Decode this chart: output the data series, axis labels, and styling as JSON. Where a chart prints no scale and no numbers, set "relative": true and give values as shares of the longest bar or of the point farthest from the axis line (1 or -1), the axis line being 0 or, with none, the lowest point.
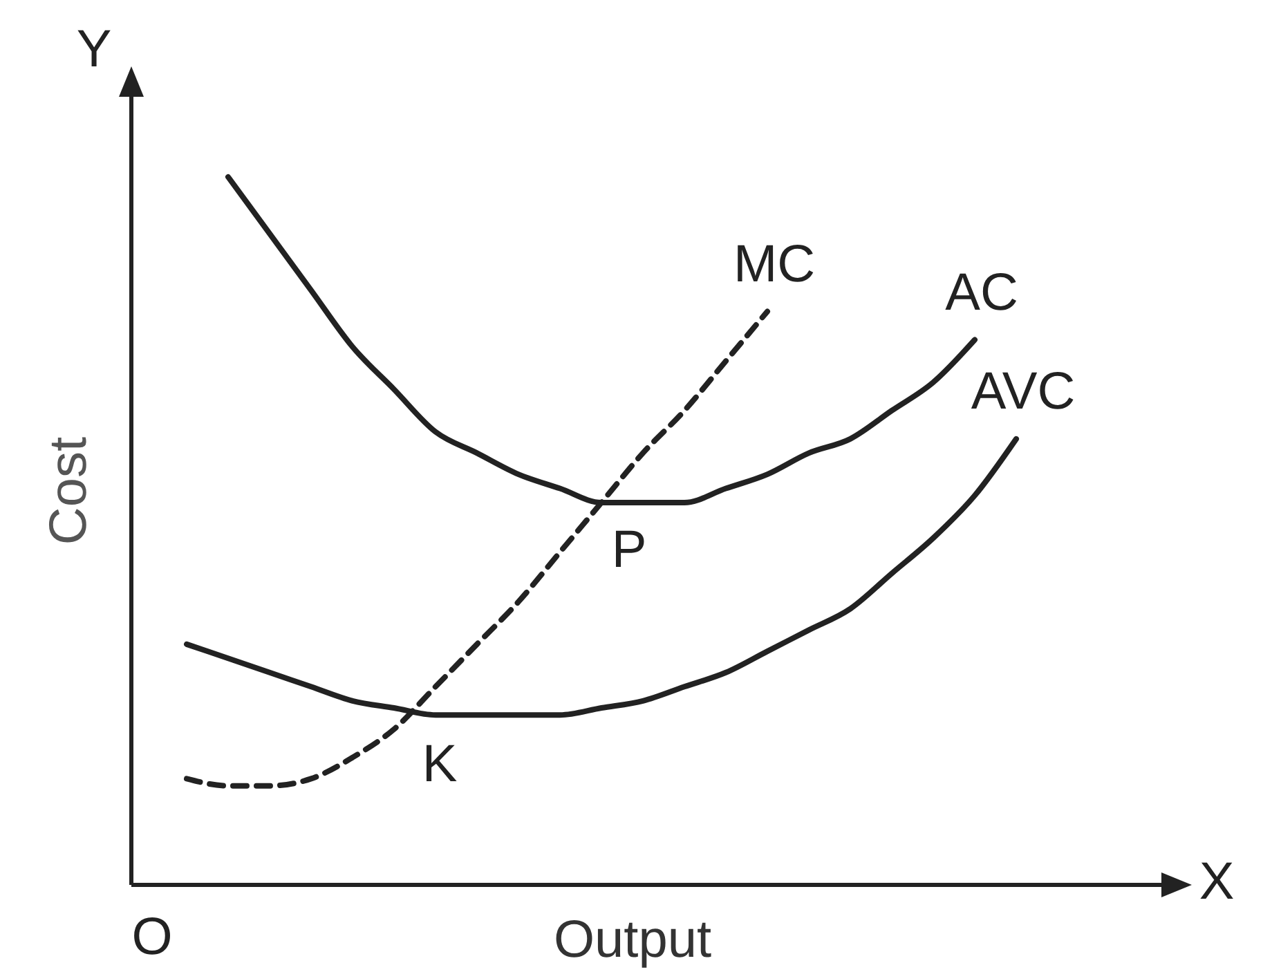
{
  "chart_data": {
    "type": "line",
    "relative": true,
    "xlabel": "Output",
    "ylabel": "Cost",
    "legend": false,
    "categories": [
      null,
      null,
      null,
      null,
      null,
      null,
      null,
      null,
      null,
      null,
      null,
      null,
      null,
      null,
      null,
      null,
      null,
      null,
      null,
      null,
      null
    ],
    "series": [
      {
        "name": "AC",
        "color": "#222222",
        "line_style": "solid",
        "values": [
          null,
          1.0,
          0.92,
          0.84,
          0.76,
          0.7,
          0.64,
          0.61,
          0.58,
          0.56,
          0.54,
          0.54,
          0.54,
          0.56,
          0.58,
          0.61,
          0.63,
          0.67,
          0.71,
          0.77,
          null
        ]
      },
      {
        "name": "AVC",
        "color": "#222222",
        "line_style": "solid",
        "values": [
          0.34,
          0.32,
          0.3,
          0.28,
          0.26,
          0.25,
          0.24,
          0.24,
          0.24,
          0.24,
          0.25,
          0.26,
          0.28,
          0.3,
          0.33,
          0.36,
          0.39,
          0.44,
          0.49,
          0.55,
          0.63
        ]
      },
      {
        "name": "MC",
        "color": "#222222",
        "line_style": "dashed",
        "values": [
          0.15,
          0.14,
          0.14,
          0.15,
          0.18,
          0.22,
          0.28,
          0.34,
          0.4,
          0.47,
          0.54,
          0.61,
          0.67,
          0.74,
          0.81,
          null,
          null,
          null,
          null,
          null,
          null
        ]
      }
    ],
    "annotations": [
      "P",
      "K",
      "O",
      "X",
      "Y"
    ]
  }
}
